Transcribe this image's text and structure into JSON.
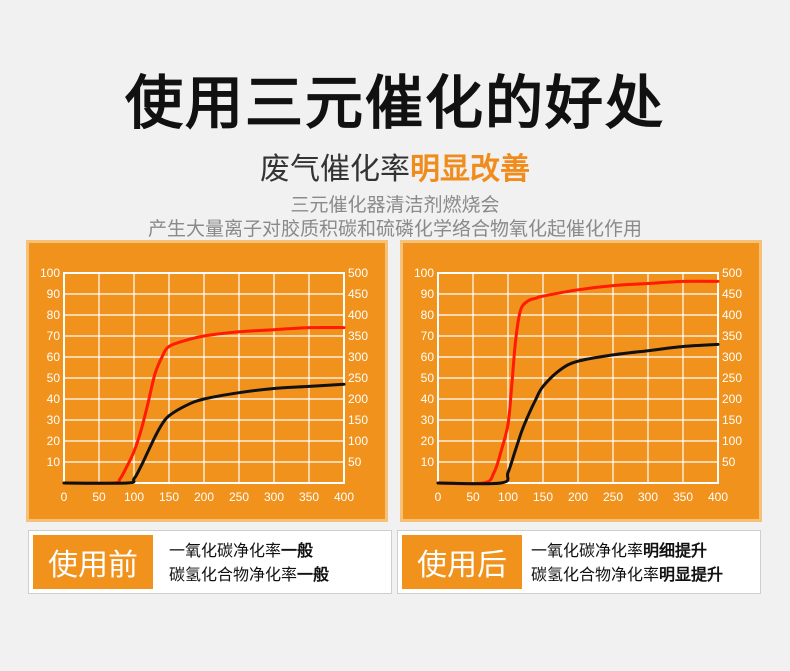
{
  "header": {
    "title": "使用三元催化的好处",
    "subtitle_main": "废气催化率",
    "subtitle_highlight": "明显改善",
    "desc_line1": "三元催化器清洁剂燃烧会",
    "desc_line2": "产生大量离子对胶质积碳和硫磷化学络合物氧化起催化作用"
  },
  "colors": {
    "panel": "#f0921c",
    "red_curve": "#ff1a00",
    "black_curve": "#111111",
    "highlight": "#f08c1c"
  },
  "chart_data": [
    {
      "type": "line",
      "x_ticks": [
        0,
        50,
        100,
        150,
        200,
        250,
        300,
        350,
        400
      ],
      "xlim": [
        0,
        400
      ],
      "y_left_ticks": [
        10,
        20,
        30,
        40,
        50,
        60,
        70,
        80,
        90,
        100
      ],
      "ylim_left": [
        0,
        100
      ],
      "y_right_ticks": [
        50,
        100,
        150,
        200,
        250,
        300,
        350,
        400,
        450,
        500
      ],
      "ylim_right": [
        0,
        500
      ],
      "grid": true,
      "series": [
        {
          "color": "#ff1a00",
          "x": [
            0,
            70,
            80,
            90,
            100,
            110,
            120,
            130,
            140,
            150,
            175,
            200,
            250,
            300,
            350,
            400
          ],
          "y": [
            0,
            0,
            2,
            8,
            15,
            25,
            38,
            52,
            60,
            65,
            68,
            70,
            72,
            73,
            74,
            74
          ]
        },
        {
          "color": "#111111",
          "x": [
            0,
            90,
            100,
            110,
            120,
            130,
            140,
            150,
            175,
            200,
            250,
            300,
            350,
            400
          ],
          "y": [
            0,
            0,
            2,
            8,
            15,
            22,
            28,
            32,
            37,
            40,
            43,
            45,
            46,
            47
          ]
        }
      ]
    },
    {
      "type": "line",
      "x_ticks": [
        0,
        50,
        100,
        150,
        200,
        250,
        300,
        350,
        400
      ],
      "xlim": [
        0,
        400
      ],
      "y_left_ticks": [
        10,
        20,
        30,
        40,
        50,
        60,
        70,
        80,
        90,
        100
      ],
      "ylim_left": [
        0,
        100
      ],
      "y_right_ticks": [
        50,
        100,
        150,
        200,
        250,
        300,
        350,
        400,
        450,
        500
      ],
      "ylim_right": [
        0,
        500
      ],
      "grid": true,
      "series": [
        {
          "color": "#ff1a00",
          "x": [
            0,
            65,
            80,
            90,
            100,
            105,
            110,
            115,
            120,
            130,
            140,
            150,
            200,
            250,
            300,
            350,
            400
          ],
          "y": [
            0,
            0,
            5,
            15,
            28,
            45,
            65,
            78,
            84,
            87,
            88,
            89,
            92,
            94,
            95,
            96,
            96
          ]
        },
        {
          "color": "#111111",
          "x": [
            0,
            90,
            100,
            110,
            120,
            130,
            140,
            150,
            175,
            200,
            250,
            300,
            350,
            400
          ],
          "y": [
            0,
            0,
            5,
            15,
            25,
            33,
            40,
            46,
            54,
            58,
            61,
            63,
            65,
            66
          ]
        }
      ]
    }
  ],
  "captions": [
    {
      "tag": "使用前",
      "line1_normal": "一氧化碳净化率",
      "line1_bold": "一般",
      "line2_normal": "碳氢化合物净化率",
      "line2_bold": "一般"
    },
    {
      "tag": "使用后",
      "line1_normal": "一氧化碳净化率",
      "line1_bold": "明细提升",
      "line2_normal": "碳氢化合物净化率",
      "line2_bold": "明显提升"
    }
  ]
}
